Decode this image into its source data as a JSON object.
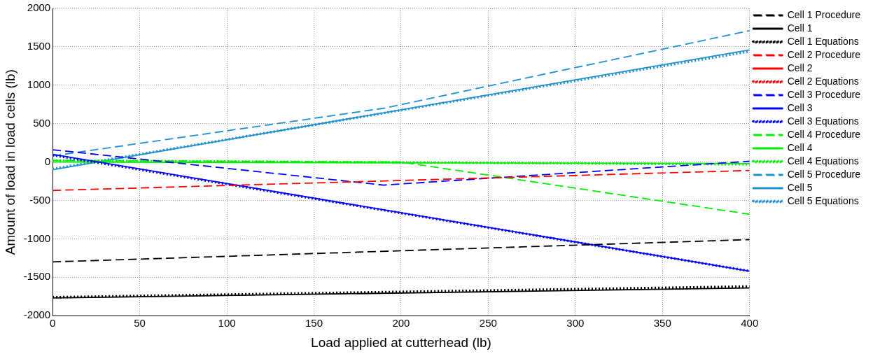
{
  "chart_data": {
    "type": "line",
    "xlabel": "Load applied at cutterhead (lb)",
    "ylabel": "Amount of load in load cells (lb)",
    "xlim": [
      0,
      400
    ],
    "xticks": [
      0,
      50,
      100,
      150,
      200,
      250,
      300,
      350,
      400
    ],
    "ylim": [
      -2000,
      2000
    ],
    "yticks": [
      -2000,
      -1500,
      -1000,
      -500,
      0,
      500,
      1000,
      1500,
      2000
    ],
    "grid": true,
    "legend": "right",
    "marker": "none",
    "series": [
      {
        "name": "Cell 1 Procedure",
        "color": "#000000",
        "line_style": "dashed",
        "x": [
          0,
          400
        ],
        "values": [
          -1300,
          -1010
        ]
      },
      {
        "name": "Cell 1",
        "color": "#000000",
        "line_style": "solid",
        "x": [
          0,
          400
        ],
        "values": [
          -1770,
          -1640
        ]
      },
      {
        "name": "Cell 1 Equations",
        "color": "#000000",
        "line_style": "dotted",
        "x": [
          0,
          400
        ],
        "values": [
          -1760,
          -1620
        ]
      },
      {
        "name": "Cell 2 Procedure",
        "color": "#ff0000",
        "line_style": "dashed",
        "x": [
          0,
          400
        ],
        "values": [
          -370,
          -110
        ]
      },
      {
        "name": "Cell 2",
        "color": "#ff0000",
        "line_style": "solid"
      },
      {
        "name": "Cell 2 Equations",
        "color": "#ff0000",
        "line_style": "dotted"
      },
      {
        "name": "Cell 3 Procedure",
        "color": "#0000ff",
        "line_style": "dashed",
        "x": [
          0,
          190,
          400
        ],
        "values": [
          160,
          -300,
          10
        ]
      },
      {
        "name": "Cell 3",
        "color": "#0000ff",
        "line_style": "solid",
        "x": [
          0,
          400
        ],
        "values": [
          100,
          -1420
        ]
      },
      {
        "name": "Cell 3 Equations",
        "color": "#0000ff",
        "line_style": "dotted",
        "x": [
          0,
          400
        ],
        "values": [
          90,
          -1420
        ]
      },
      {
        "name": "Cell 4 Procedure",
        "color": "#00ee00",
        "line_style": "dashed",
        "x": [
          0,
          200,
          400
        ],
        "values": [
          20,
          0,
          -680
        ]
      },
      {
        "name": "Cell 4",
        "color": "#00ee00",
        "line_style": "solid",
        "x": [
          0,
          400
        ],
        "values": [
          0,
          -20
        ]
      },
      {
        "name": "Cell 4 Equations",
        "color": "#00ee00",
        "line_style": "dotted",
        "x": [
          0,
          400
        ],
        "values": [
          20,
          -30
        ]
      },
      {
        "name": "Cell 5 Procedure",
        "color": "#1e8fcf",
        "line_style": "dashed",
        "x": [
          0,
          190,
          400
        ],
        "values": [
          80,
          700,
          1710
        ]
      },
      {
        "name": "Cell 5",
        "color": "#1e8fcf",
        "line_style": "solid",
        "x": [
          0,
          400
        ],
        "values": [
          -100,
          1460
        ]
      },
      {
        "name": "Cell 5 Equations",
        "color": "#1e8fcf",
        "line_style": "dotted",
        "x": [
          0,
          400
        ],
        "values": [
          -90,
          1440
        ]
      }
    ]
  }
}
